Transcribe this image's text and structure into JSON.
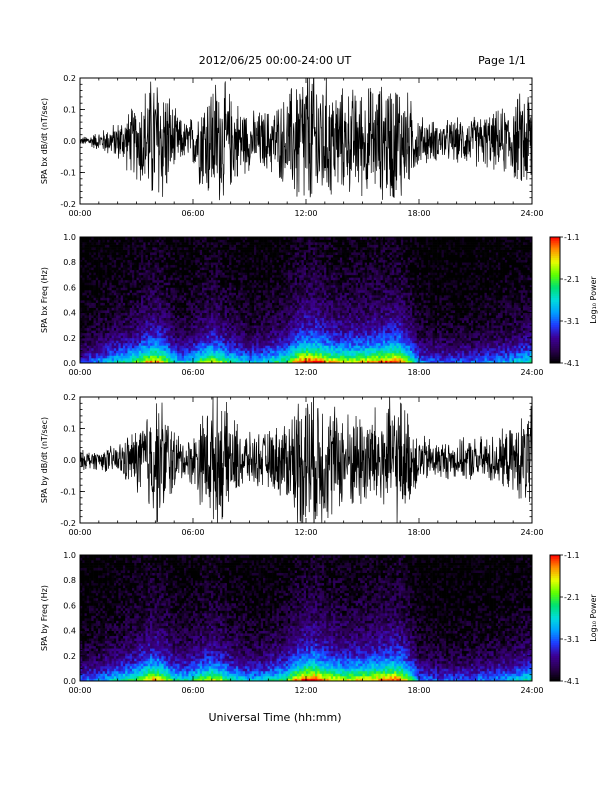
{
  "header": {
    "title": "2012/06/25  00:00-24:00 UT",
    "page": "Page 1/1"
  },
  "x_axis_title": "Universal Time (hh:mm)",
  "colorbar_label": "Log₁₀ Power",
  "colors": {
    "colormap": [
      "#000000",
      "#2a0050",
      "#3c0096",
      "#1e3cff",
      "#00a0ff",
      "#00dcdc",
      "#00e070",
      "#60ff00",
      "#e8ff00",
      "#ff9000",
      "#ff0000"
    ]
  },
  "chart_data": [
    {
      "type": "line",
      "ylabel": "SPA bx dB/dt (nT/sec)",
      "xlim": [
        "00:00",
        "24:00"
      ],
      "x_ticks": [
        "00:00",
        "06:00",
        "12:00",
        "18:00",
        "24:00"
      ],
      "ylim": [
        -0.2,
        0.2
      ],
      "y_ticks": [
        "-0.2",
        "-0.1",
        "0.0",
        "0.1",
        "0.2"
      ],
      "envelope": {
        "hours": [
          0,
          1,
          2,
          3,
          3.5,
          4,
          4.5,
          5,
          5.5,
          6,
          6.5,
          7,
          7.5,
          8,
          9,
          10,
          11,
          11.5,
          12,
          12.5,
          13,
          14,
          15,
          16,
          16.5,
          17,
          17.5,
          18,
          19,
          20,
          21,
          22,
          23,
          24
        ],
        "amplitude": [
          0.01,
          0.03,
          0.06,
          0.12,
          0.18,
          0.22,
          0.2,
          0.1,
          0.06,
          0.08,
          0.16,
          0.2,
          0.2,
          0.15,
          0.09,
          0.1,
          0.14,
          0.22,
          0.25,
          0.25,
          0.2,
          0.16,
          0.17,
          0.18,
          0.2,
          0.2,
          0.14,
          0.08,
          0.06,
          0.07,
          0.08,
          0.09,
          0.12,
          0.2
        ]
      }
    },
    {
      "type": "heatmap",
      "ylabel": "SPA bx Freq (Hz)",
      "xlim": [
        "00:00",
        "24:00"
      ],
      "x_ticks": [
        "00:00",
        "06:00",
        "12:00",
        "18:00",
        "24:00"
      ],
      "ylim": [
        0.0,
        1.0
      ],
      "y_ticks": [
        "0.0",
        "0.2",
        "0.4",
        "0.6",
        "0.8",
        "1.0"
      ],
      "colorbar_range": [
        -4.1,
        -1.1
      ],
      "colorbar_ticks": [
        "-1.1",
        "-2.1",
        "-3.1",
        "-4.1"
      ],
      "activity": {
        "hours": [
          0,
          1,
          2,
          3,
          3.5,
          4,
          4.5,
          5,
          5.5,
          6,
          6.5,
          7,
          7.5,
          8,
          9,
          10,
          11,
          11.5,
          12,
          12.5,
          13,
          14,
          15,
          16,
          16.5,
          17,
          17.5,
          18,
          19,
          20,
          21,
          22,
          23,
          24
        ],
        "level": [
          0.25,
          0.35,
          0.45,
          0.55,
          0.7,
          0.75,
          0.65,
          0.45,
          0.4,
          0.45,
          0.6,
          0.65,
          0.6,
          0.5,
          0.4,
          0.45,
          0.55,
          0.75,
          0.85,
          0.85,
          0.75,
          0.65,
          0.7,
          0.75,
          0.8,
          0.8,
          0.6,
          0.35,
          0.3,
          0.3,
          0.32,
          0.35,
          0.4,
          0.5
        ]
      }
    },
    {
      "type": "line",
      "ylabel": "SPA by dB/dt (nT/sec)",
      "xlim": [
        "00:00",
        "24:00"
      ],
      "x_ticks": [
        "00:00",
        "06:00",
        "12:00",
        "18:00",
        "24:00"
      ],
      "ylim": [
        -0.2,
        0.2
      ],
      "y_ticks": [
        "-0.2",
        "-0.1",
        "0.0",
        "0.1",
        "0.2"
      ],
      "envelope": {
        "hours": [
          0,
          1,
          2,
          3,
          3.5,
          4,
          4.5,
          5,
          5.5,
          6,
          6.5,
          7,
          7.5,
          8,
          9,
          10,
          11,
          11.5,
          12,
          12.5,
          13,
          14,
          15,
          16,
          16.5,
          17,
          17.5,
          18,
          19,
          20,
          21,
          22,
          23,
          24
        ],
        "amplitude": [
          0.03,
          0.03,
          0.05,
          0.1,
          0.16,
          0.2,
          0.18,
          0.1,
          0.06,
          0.08,
          0.15,
          0.2,
          0.2,
          0.14,
          0.08,
          0.09,
          0.13,
          0.2,
          0.25,
          0.25,
          0.2,
          0.15,
          0.16,
          0.17,
          0.2,
          0.2,
          0.14,
          0.08,
          0.06,
          0.06,
          0.07,
          0.08,
          0.1,
          0.18
        ]
      }
    },
    {
      "type": "heatmap",
      "ylabel": "SPA by Freq (Hz)",
      "xlim": [
        "00:00",
        "24:00"
      ],
      "x_ticks": [
        "00:00",
        "06:00",
        "12:00",
        "18:00",
        "24:00"
      ],
      "ylim": [
        0.0,
        1.0
      ],
      "y_ticks": [
        "0.0",
        "0.2",
        "0.4",
        "0.6",
        "0.8",
        "1.0"
      ],
      "colorbar_range": [
        -4.1,
        -1.1
      ],
      "colorbar_ticks": [
        "-1.1",
        "-2.1",
        "-3.1",
        "-4.1"
      ],
      "activity": {
        "hours": [
          0,
          1,
          2,
          3,
          3.5,
          4,
          4.5,
          5,
          5.5,
          6,
          6.5,
          7,
          7.5,
          8,
          9,
          10,
          11,
          11.5,
          12,
          12.5,
          13,
          14,
          15,
          16,
          16.5,
          17,
          17.5,
          18,
          19,
          20,
          21,
          22,
          23,
          24
        ],
        "level": [
          0.3,
          0.35,
          0.45,
          0.55,
          0.7,
          0.75,
          0.65,
          0.5,
          0.45,
          0.5,
          0.6,
          0.65,
          0.6,
          0.5,
          0.4,
          0.45,
          0.55,
          0.75,
          0.85,
          0.85,
          0.75,
          0.65,
          0.7,
          0.75,
          0.8,
          0.8,
          0.6,
          0.35,
          0.3,
          0.3,
          0.32,
          0.35,
          0.4,
          0.5
        ]
      }
    }
  ]
}
